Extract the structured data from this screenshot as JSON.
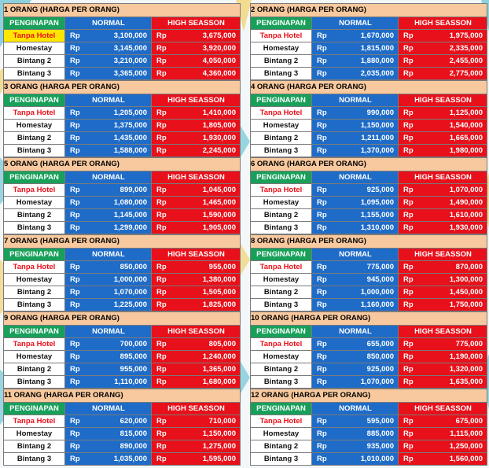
{
  "headers": {
    "col1": "PENGINAPAN",
    "col2": "NORMAL",
    "col3": "HIGH SEASSON"
  },
  "currency": "Rp",
  "colors": {
    "title_bg": "#f8c99e",
    "header_green": "#18a05a",
    "normal_blue": "#1f6cc8",
    "high_red": "#e8101a",
    "highlight_yellow": "#ffe600"
  },
  "tables": [
    {
      "title": "1 ORANG (HARGA PER ORANG)",
      "rows": [
        {
          "name": "Tanpa Hotel",
          "normal": "3,100,000",
          "high": "3,675,000"
        },
        {
          "name": "Homestay",
          "normal": "3,145,000",
          "high": "3,920,000"
        },
        {
          "name": "Bintang 2",
          "normal": "3,210,000",
          "high": "4,050,000"
        },
        {
          "name": "Bintang 3",
          "normal": "3,365,000",
          "high": "4,360,000"
        }
      ]
    },
    {
      "title": "2 ORANG (HARGA PER ORANG)",
      "rows": [
        {
          "name": "Tanpa Hotel",
          "normal": "1,670,000",
          "high": "1,975,000"
        },
        {
          "name": "Homestay",
          "normal": "1,815,000",
          "high": "2,335,000"
        },
        {
          "name": "Bintang 2",
          "normal": "1,880,000",
          "high": "2,455,000"
        },
        {
          "name": "Bintang 3",
          "normal": "2,035,000",
          "high": "2,775,000"
        }
      ]
    },
    {
      "title": "3 ORANG (HARGA PER ORANG)",
      "rows": [
        {
          "name": "Tanpa Hotel",
          "normal": "1,205,000",
          "high": "1,410,000"
        },
        {
          "name": "Homestay",
          "normal": "1,375,000",
          "high": "1,805,000"
        },
        {
          "name": "Bintang 2",
          "normal": "1,435,000",
          "high": "1,930,000"
        },
        {
          "name": "Bintang 3",
          "normal": "1,588,000",
          "high": "2,245,000"
        }
      ]
    },
    {
      "title": "4 ORANG (HARGA PER ORANG)",
      "rows": [
        {
          "name": "Tanpa Hotel",
          "normal": "990,000",
          "high": "1,125,000"
        },
        {
          "name": "Homestay",
          "normal": "1,150,000",
          "high": "1,540,000"
        },
        {
          "name": "Bintang 2",
          "normal": "1,211,000",
          "high": "1,665,000"
        },
        {
          "name": "Bintang 3",
          "normal": "1,370,000",
          "high": "1,980,000"
        }
      ]
    },
    {
      "title": "5 ORANG (HARGA PER ORANG)",
      "rows": [
        {
          "name": "Tanpa Hotel",
          "normal": "899,000",
          "high": "1,045,000"
        },
        {
          "name": "Homestay",
          "normal": "1,080,000",
          "high": "1,465,000"
        },
        {
          "name": "Bintang 2",
          "normal": "1,145,000",
          "high": "1,590,000"
        },
        {
          "name": "Bintang 3",
          "normal": "1,299,000",
          "high": "1,905,000"
        }
      ]
    },
    {
      "title": "6 ORANG (HARGA PER ORANG)",
      "rows": [
        {
          "name": "Tanpa Hotel",
          "normal": "925,000",
          "high": "1,070,000"
        },
        {
          "name": "Homestay",
          "normal": "1,095,000",
          "high": "1,490,000"
        },
        {
          "name": "Bintang 2",
          "normal": "1,155,000",
          "high": "1,610,000"
        },
        {
          "name": "Bintang 3",
          "normal": "1,310,000",
          "high": "1,930,000"
        }
      ]
    },
    {
      "title": "7 ORANG (HARGA PER ORANG)",
      "rows": [
        {
          "name": "Tanpa Hotel",
          "normal": "850,000",
          "high": "955,000"
        },
        {
          "name": "Homestay",
          "normal": "1,000,000",
          "high": "1,380,000"
        },
        {
          "name": "Bintang 2",
          "normal": "1,070,000",
          "high": "1,505,000"
        },
        {
          "name": "Bintang 3",
          "normal": "1,225,000",
          "high": "1,825,000"
        }
      ]
    },
    {
      "title": "8 ORANG (HARGA PER ORANG)",
      "rows": [
        {
          "name": "Tanpa Hotel",
          "normal": "775,000",
          "high": "870,000"
        },
        {
          "name": "Homestay",
          "normal": "945,000",
          "high": "1,300,000"
        },
        {
          "name": "Bintang 2",
          "normal": "1,000,000",
          "high": "1,450,000"
        },
        {
          "name": "Bintang 3",
          "normal": "1,160,000",
          "high": "1,750,000"
        }
      ]
    },
    {
      "title": "9 ORANG (HARGA PER ORANG)",
      "rows": [
        {
          "name": "Tanpa Hotel",
          "normal": "700,000",
          "high": "805,000"
        },
        {
          "name": "Homestay",
          "normal": "895,000",
          "high": "1,240,000"
        },
        {
          "name": "Bintang 2",
          "normal": "955,000",
          "high": "1,365,000"
        },
        {
          "name": "Bintang 3",
          "normal": "1,110,000",
          "high": "1,680,000"
        }
      ]
    },
    {
      "title": "10 ORANG (HARGA PER ORANG)",
      "rows": [
        {
          "name": "Tanpa Hotel",
          "normal": "655,000",
          "high": "775,000"
        },
        {
          "name": "Homestay",
          "normal": "850,000",
          "high": "1,190,000"
        },
        {
          "name": "Bintang 2",
          "normal": "925,000",
          "high": "1,320,000"
        },
        {
          "name": "Bintang 3",
          "normal": "1,070,000",
          "high": "1,635,000"
        }
      ]
    },
    {
      "title": "11 ORANG (HARGA PER ORANG)",
      "rows": [
        {
          "name": "Tanpa Hotel",
          "normal": "620,000",
          "high": "710,000"
        },
        {
          "name": "Homestay",
          "normal": "815,000",
          "high": "1,150,000"
        },
        {
          "name": "Bintang 2",
          "normal": "890,000",
          "high": "1,275,000"
        },
        {
          "name": "Bintang 3",
          "normal": "1,035,000",
          "high": "1,595,000"
        }
      ]
    },
    {
      "title": "12 ORANG (HARGA PER ORANG)",
      "rows": [
        {
          "name": "Tanpa Hotel",
          "normal": "595,000",
          "high": "675,000"
        },
        {
          "name": "Homestay",
          "normal": "885,000",
          "high": "1,115,000"
        },
        {
          "name": "Bintang 2",
          "normal": "935,000",
          "high": "1,250,000"
        },
        {
          "name": "Bintang 3",
          "normal": "1,010,000",
          "high": "1,560,000"
        }
      ]
    }
  ]
}
